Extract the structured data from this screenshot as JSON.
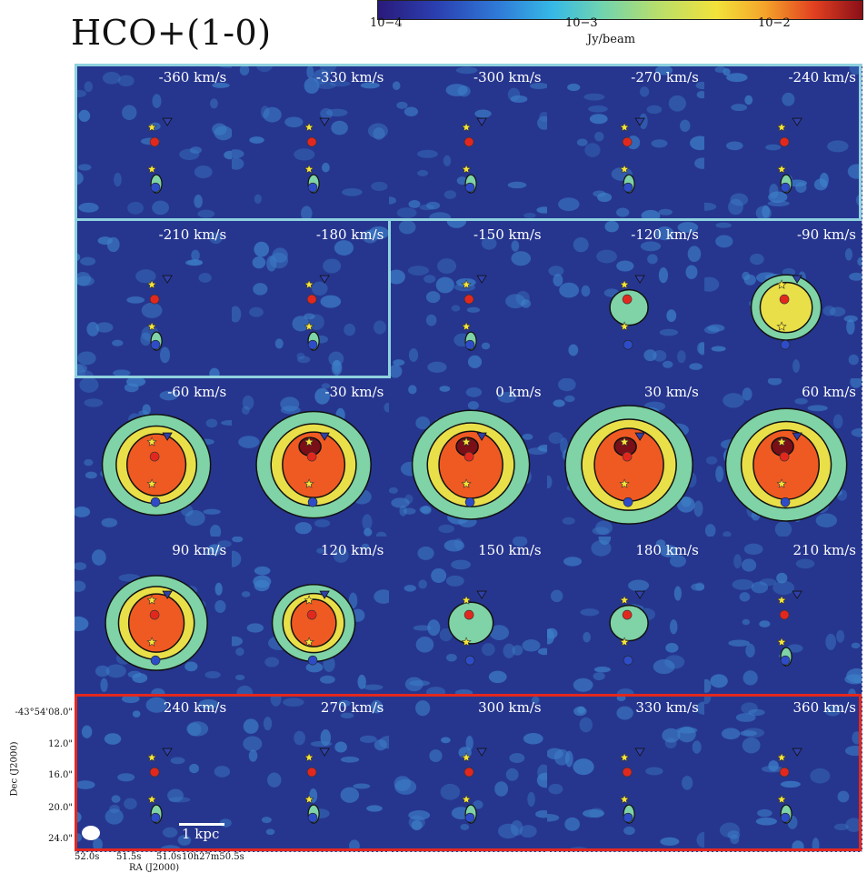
{
  "title": "HCO+(1-0)",
  "colorbar": {
    "ticks": [
      "10−4",
      "10−3",
      "10−2"
    ],
    "label": "Jy/beam"
  },
  "panels": [
    {
      "vel": "-360 km/s",
      "level": 0.05
    },
    {
      "vel": "-330 km/s",
      "level": 0.05
    },
    {
      "vel": "-300 km/s",
      "level": 0.06
    },
    {
      "vel": "-270 km/s",
      "level": 0.06
    },
    {
      "vel": "-240 km/s",
      "level": 0.06
    },
    {
      "vel": "-210 km/s",
      "level": 0.1
    },
    {
      "vel": "-180 km/s",
      "level": 0.12
    },
    {
      "vel": "-150 km/s",
      "level": 0.15
    },
    {
      "vel": "-120 km/s",
      "level": 0.3
    },
    {
      "vel": "-90 km/s",
      "level": 0.55
    },
    {
      "vel": "-60 km/s",
      "level": 0.85
    },
    {
      "vel": "-30 km/s",
      "level": 0.9
    },
    {
      "vel": "0 km/s",
      "level": 0.92
    },
    {
      "vel": "30 km/s",
      "level": 1.0
    },
    {
      "vel": "60 km/s",
      "level": 0.95
    },
    {
      "vel": "90 km/s",
      "level": 0.8
    },
    {
      "vel": "120 km/s",
      "level": 0.65
    },
    {
      "vel": "150 km/s",
      "level": 0.35
    },
    {
      "vel": "180 km/s",
      "level": 0.3
    },
    {
      "vel": "210 km/s",
      "level": 0.2
    },
    {
      "vel": "240 km/s",
      "level": 0.12
    },
    {
      "vel": "270 km/s",
      "level": 0.1
    },
    {
      "vel": "300 km/s",
      "level": 0.1
    },
    {
      "vel": "330 km/s",
      "level": 0.08
    },
    {
      "vel": "360 km/s",
      "level": 0.06
    }
  ],
  "axes": {
    "yticks": [
      "-43°54'08.0\"",
      "12.0\"",
      "16.0\"",
      "20.0\"",
      "24.0\""
    ],
    "xticks": [
      "52.0s",
      "51.5s",
      "51.0s",
      "10h27m50.5s"
    ],
    "ylabel": "Dec (J2000)",
    "xlabel": "RA (J2000)"
  },
  "scalebar": "1 kpc",
  "colors": {
    "background": "#26368f",
    "cyan_frame": "#8fd2df",
    "red_frame": "#e2281e"
  }
}
